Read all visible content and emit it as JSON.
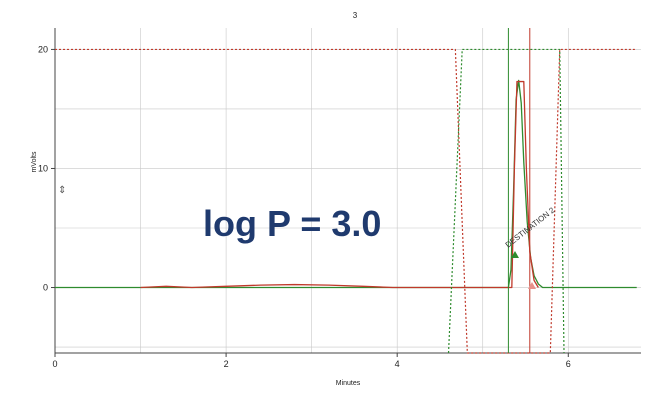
{
  "chart_data": {
    "type": "line",
    "title": "3",
    "xlabel": "Minutes",
    "ylabel": "mVolts",
    "xlim": [
      0,
      6.85
    ],
    "ylim": [
      -5.5,
      21.8
    ],
    "x_ticks": [
      0,
      2,
      4,
      6
    ],
    "x_tick_labels": [
      "0",
      "2",
      "4",
      "6"
    ],
    "y_ticks": [
      0,
      10,
      20
    ],
    "y_tick_labels": [
      "0",
      "10",
      "20"
    ],
    "grid": true,
    "legend": "none",
    "overlay_text": "log P = 3.0",
    "peak_annotation": "DESTINATION 2",
    "colors": {
      "green": "#2e8b2e",
      "red": "#c0392b",
      "dark_red": "#8b1a1a",
      "grid": "#c8c8c8",
      "axis": "#444444",
      "overlay": "#1f3a6e"
    },
    "vertical_markers": [
      {
        "x": 5.3,
        "color": "#2e8b2e"
      },
      {
        "x": 5.55,
        "color": "#c0392b"
      }
    ],
    "series": [
      {
        "color": "#2e8b2e",
        "style": "solid",
        "points": [
          [
            0,
            0
          ],
          [
            5.3,
            0
          ],
          [
            5.33,
            1.5
          ],
          [
            5.36,
            8
          ],
          [
            5.39,
            15.8
          ],
          [
            5.42,
            17.4
          ],
          [
            5.45,
            15.5
          ],
          [
            5.48,
            10.5
          ],
          [
            5.52,
            5.5
          ],
          [
            5.56,
            2.5
          ],
          [
            5.6,
            1.0
          ],
          [
            5.65,
            0.3
          ],
          [
            5.7,
            0
          ],
          [
            6.8,
            0
          ]
        ]
      },
      {
        "color": "#c0392b",
        "style": "solid",
        "points": [
          [
            1.0,
            0
          ],
          [
            1.3,
            0.1
          ],
          [
            1.6,
            0
          ],
          [
            2.0,
            0.1
          ],
          [
            2.4,
            0.2
          ],
          [
            2.8,
            0.25
          ],
          [
            3.2,
            0.2
          ],
          [
            3.6,
            0.1
          ],
          [
            3.95,
            0
          ],
          [
            5.34,
            0
          ],
          [
            5.37,
            10
          ],
          [
            5.4,
            17.3
          ],
          [
            5.48,
            17.3
          ],
          [
            5.51,
            10
          ],
          [
            5.55,
            3
          ],
          [
            5.6,
            0.6
          ],
          [
            5.65,
            0
          ]
        ]
      },
      {
        "color": "#c0392b",
        "style": "dotted",
        "points": [
          [
            0,
            20
          ],
          [
            4.68,
            20
          ],
          [
            4.82,
            -5.5
          ],
          [
            5.79,
            -5.5
          ],
          [
            5.9,
            20
          ],
          [
            6.8,
            20
          ]
        ]
      },
      {
        "color": "#2e8b2e",
        "style": "dotted",
        "points": [
          [
            4.6,
            -5.5
          ],
          [
            4.76,
            20
          ],
          [
            5.9,
            20
          ],
          [
            5.95,
            -5.5
          ]
        ]
      }
    ]
  }
}
